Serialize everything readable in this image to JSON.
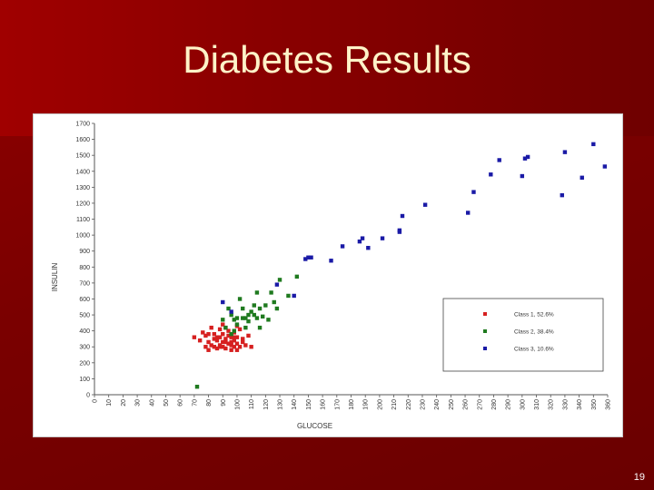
{
  "slide": {
    "title": "Diabetes Results",
    "number": "19"
  },
  "colors": {
    "background": "#7a0000",
    "title_text": "#fff3c8",
    "class1": "#d62020",
    "class2": "#1f7a1f",
    "class3": "#1a1aa6"
  },
  "chart_data": {
    "type": "scatter",
    "xlabel": "GLUCOSE",
    "ylabel": "INSULIN",
    "xlim": [
      0,
      360
    ],
    "ylim": [
      0,
      1700
    ],
    "x_ticks": [
      0,
      10,
      20,
      30,
      40,
      50,
      60,
      70,
      80,
      90,
      100,
      110,
      120,
      130,
      140,
      150,
      160,
      170,
      180,
      190,
      200,
      210,
      220,
      230,
      240,
      250,
      260,
      270,
      280,
      290,
      300,
      310,
      320,
      330,
      340,
      350,
      360
    ],
    "y_ticks": [
      0,
      100,
      200,
      300,
      400,
      500,
      600,
      700,
      800,
      900,
      1000,
      1100,
      1200,
      1300,
      1400,
      1500,
      1600,
      1700
    ],
    "legend_position": "bottom-right",
    "grid": false,
    "series": [
      {
        "name": "Class 1, 52.6%",
        "color": "#d62020",
        "points": [
          [
            70,
            360
          ],
          [
            74,
            340
          ],
          [
            76,
            390
          ],
          [
            78,
            370
          ],
          [
            78,
            300
          ],
          [
            80,
            330
          ],
          [
            80,
            280
          ],
          [
            82,
            310
          ],
          [
            82,
            420
          ],
          [
            84,
            350
          ],
          [
            84,
            380
          ],
          [
            86,
            290
          ],
          [
            86,
            340
          ],
          [
            88,
            410
          ],
          [
            88,
            360
          ],
          [
            88,
            310
          ],
          [
            90,
            300
          ],
          [
            90,
            330
          ],
          [
            90,
            380
          ],
          [
            92,
            290
          ],
          [
            92,
            350
          ],
          [
            92,
            420
          ],
          [
            94,
            320
          ],
          [
            94,
            400
          ],
          [
            96,
            280
          ],
          [
            96,
            360
          ],
          [
            96,
            310
          ],
          [
            98,
            340
          ],
          [
            98,
            300
          ],
          [
            98,
            390
          ],
          [
            100,
            320
          ],
          [
            100,
            360
          ],
          [
            100,
            280
          ],
          [
            102,
            300
          ],
          [
            102,
            410
          ],
          [
            104,
            350
          ],
          [
            104,
            330
          ],
          [
            106,
            310
          ],
          [
            108,
            370
          ],
          [
            110,
            300
          ],
          [
            86,
            360
          ],
          [
            94,
            370
          ],
          [
            100,
            430
          ],
          [
            80,
            380
          ],
          [
            90,
            440
          ],
          [
            96,
            330
          ],
          [
            88,
            300
          ],
          [
            84,
            300
          ],
          [
            98,
            360
          ],
          [
            92,
            330
          ]
        ]
      },
      {
        "name": "Class 2, 38.4%",
        "color": "#1f7a1f",
        "points": [
          [
            72,
            50
          ],
          [
            90,
            470
          ],
          [
            92,
            420
          ],
          [
            94,
            540
          ],
          [
            96,
            500
          ],
          [
            96,
            380
          ],
          [
            98,
            470
          ],
          [
            100,
            480
          ],
          [
            100,
            440
          ],
          [
            102,
            600
          ],
          [
            104,
            480
          ],
          [
            104,
            540
          ],
          [
            106,
            420
          ],
          [
            108,
            500
          ],
          [
            108,
            460
          ],
          [
            110,
            520
          ],
          [
            112,
            560
          ],
          [
            112,
            500
          ],
          [
            114,
            640
          ],
          [
            114,
            480
          ],
          [
            116,
            540
          ],
          [
            116,
            420
          ],
          [
            118,
            490
          ],
          [
            120,
            560
          ],
          [
            122,
            470
          ],
          [
            124,
            640
          ],
          [
            126,
            580
          ],
          [
            128,
            540
          ],
          [
            130,
            720
          ],
          [
            136,
            620
          ],
          [
            142,
            740
          ],
          [
            98,
            400
          ],
          [
            106,
            480
          ]
        ]
      },
      {
        "name": "Class 3, 10.6%",
        "color": "#1a1aa6",
        "points": [
          [
            90,
            580
          ],
          [
            96,
            520
          ],
          [
            128,
            690
          ],
          [
            140,
            620
          ],
          [
            148,
            850
          ],
          [
            150,
            860
          ],
          [
            152,
            860
          ],
          [
            166,
            840
          ],
          [
            174,
            930
          ],
          [
            186,
            960
          ],
          [
            188,
            980
          ],
          [
            192,
            920
          ],
          [
            202,
            980
          ],
          [
            214,
            1030
          ],
          [
            214,
            1020
          ],
          [
            216,
            1120
          ],
          [
            232,
            1190
          ],
          [
            262,
            1140
          ],
          [
            266,
            1270
          ],
          [
            278,
            1380
          ],
          [
            284,
            1470
          ],
          [
            300,
            1370
          ],
          [
            302,
            1480
          ],
          [
            304,
            1490
          ],
          [
            328,
            1250
          ],
          [
            330,
            1520
          ],
          [
            342,
            1360
          ],
          [
            350,
            1570
          ],
          [
            358,
            1430
          ]
        ]
      }
    ]
  }
}
